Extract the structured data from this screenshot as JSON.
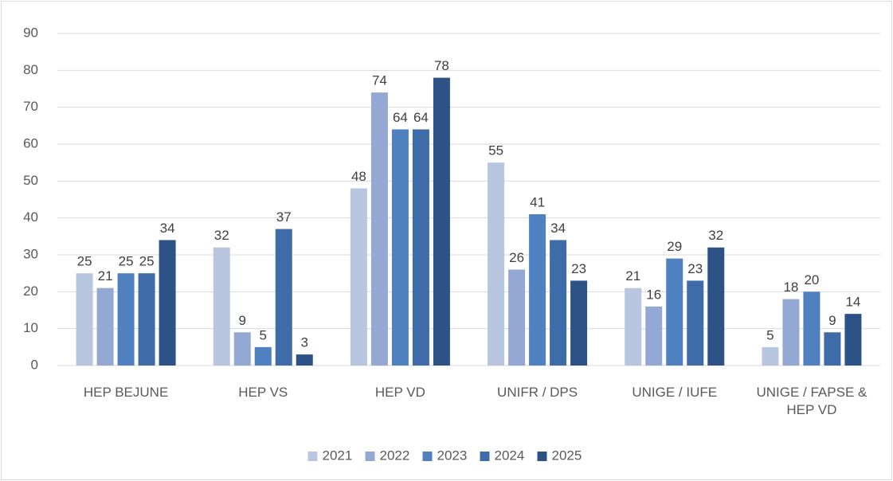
{
  "chart_data": {
    "type": "bar",
    "categories": [
      "HEP BEJUNE",
      "HEP VS",
      "HEP VD",
      "UNIFR / DPS",
      "UNIGE / IUFE",
      "UNIGE / FAPSE & HEP VD"
    ],
    "series": [
      {
        "name": "2021",
        "color": "#b8c6e0",
        "values": [
          25,
          32,
          48,
          55,
          21,
          5
        ]
      },
      {
        "name": "2022",
        "color": "#93a9d3",
        "values": [
          21,
          9,
          74,
          26,
          16,
          18
        ]
      },
      {
        "name": "2023",
        "color": "#4f80c0",
        "values": [
          25,
          5,
          64,
          41,
          29,
          20
        ]
      },
      {
        "name": "2024",
        "color": "#3e6ca8",
        "values": [
          25,
          37,
          64,
          34,
          23,
          9
        ]
      },
      {
        "name": "2025",
        "color": "#2d5386",
        "values": [
          34,
          3,
          78,
          23,
          32,
          14
        ]
      }
    ],
    "ylim": [
      0,
      90
    ],
    "yticks": [
      0,
      10,
      20,
      30,
      40,
      50,
      60,
      70,
      80,
      90
    ],
    "grid": true,
    "legend": "bottom"
  }
}
